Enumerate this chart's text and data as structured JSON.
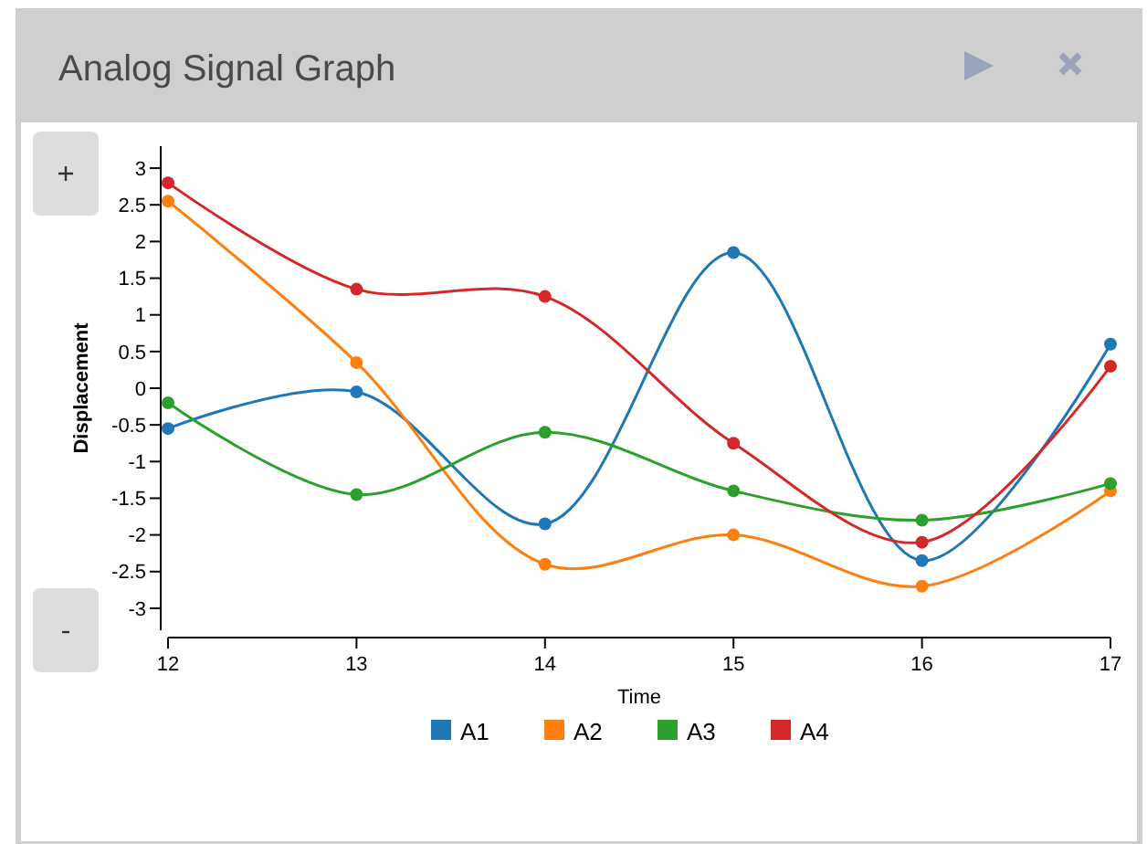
{
  "chart_data": {
    "type": "line",
    "title": "Analog Signal Graph",
    "xlabel": "Time",
    "ylabel": "Displacement",
    "x": [
      12,
      13,
      14,
      15,
      16,
      17
    ],
    "series": [
      {
        "name": "A1",
        "color": "#1f77b4",
        "values": [
          -0.55,
          -0.05,
          -1.85,
          1.85,
          -2.35,
          0.6
        ]
      },
      {
        "name": "A2",
        "color": "#ff7f0e",
        "values": [
          2.55,
          0.35,
          -2.4,
          -2.0,
          -2.7,
          -1.4
        ]
      },
      {
        "name": "A3",
        "color": "#2ca02c",
        "values": [
          -0.2,
          -1.45,
          -0.6,
          -1.4,
          -1.8,
          -1.3
        ]
      },
      {
        "name": "A4",
        "color": "#d62728",
        "values": [
          2.8,
          1.35,
          1.25,
          -0.75,
          -2.1,
          0.3
        ]
      }
    ],
    "xlim": [
      12,
      17
    ],
    "xticks": [
      12,
      13,
      14,
      15,
      16,
      17
    ],
    "ylim": [
      -3.3,
      3.3
    ],
    "yticks": [
      -3,
      -2.5,
      -2,
      -1.5,
      -1,
      -0.5,
      0,
      0.5,
      1,
      1.5,
      2,
      2.5,
      3
    ],
    "grid": false,
    "legend": "bottom",
    "marker": "circle",
    "line_style": "solid"
  }
}
